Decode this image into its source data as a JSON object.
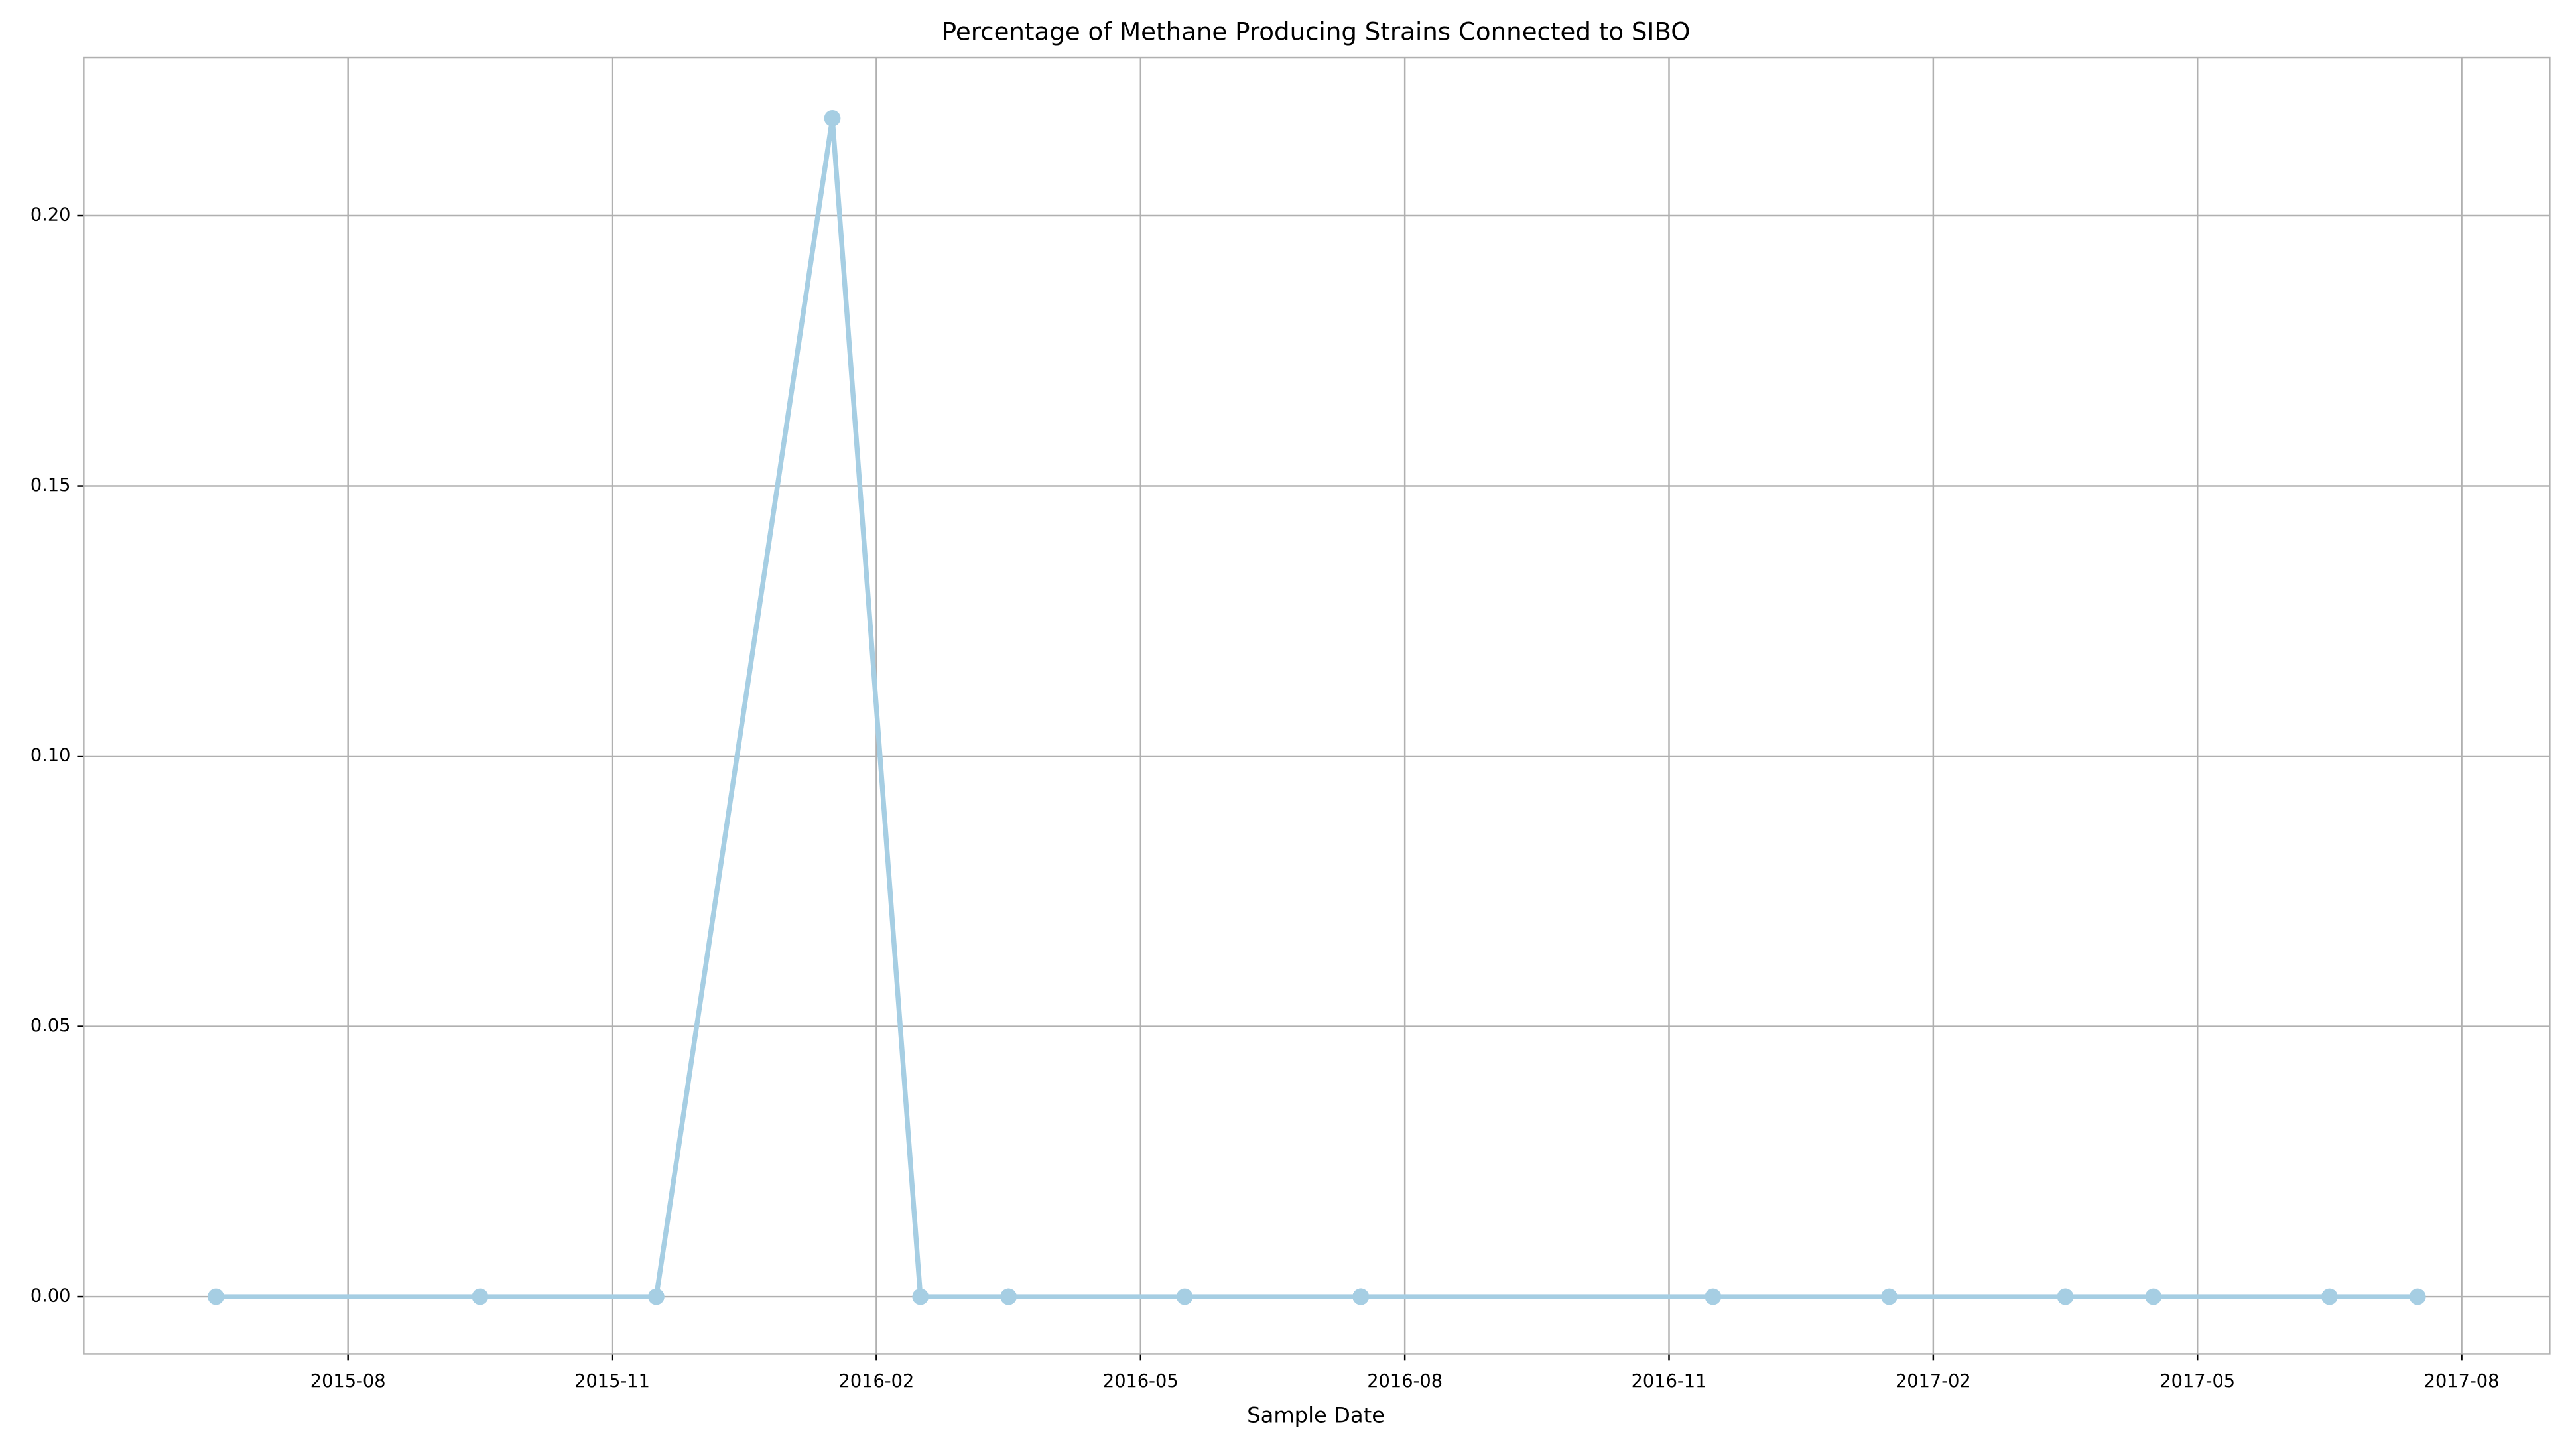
{
  "chart_data": {
    "type": "line",
    "title": "Percentage of Methane Producing Strains Connected to SIBO",
    "x_label": "Sample Date",
    "x": [
      "2015-06",
      "2015-09",
      "2015-11",
      "2016-01",
      "2016-02",
      "2016-03",
      "2016-03",
      "2016-05",
      "2016-07",
      "2016-07",
      "2016-07",
      "2016-07",
      "2016-11",
      "2017-01",
      "2017-03",
      "2017-03",
      "2017-04",
      "2017-06",
      "2017-07"
    ],
    "series": [
      {
        "color": "#a6cee3",
        "values": [
          0,
          0,
          0,
          0.218,
          0,
          0,
          0,
          0,
          0,
          0,
          0,
          0,
          0,
          0,
          0,
          0,
          0,
          0,
          0
        ]
      }
    ],
    "xlim": [
      "2015-05",
      "2017-09"
    ],
    "xticks": [
      "2015-08",
      "2015-11",
      "2016-02",
      "2016-05",
      "2016-08",
      "2016-11",
      "2017-02",
      "2017-05",
      "2017-08"
    ],
    "ylim": [
      -0.0106,
      0.2292
    ],
    "yticks": [
      {
        "value": 0,
        "label": "0.00"
      },
      {
        "value": 0.05,
        "label": "0.05"
      },
      {
        "value": 0.1,
        "label": "0.10"
      },
      {
        "value": 0.15,
        "label": "0.15"
      },
      {
        "value": 0.2,
        "label": "0.20"
      }
    ],
    "grid": true
  }
}
